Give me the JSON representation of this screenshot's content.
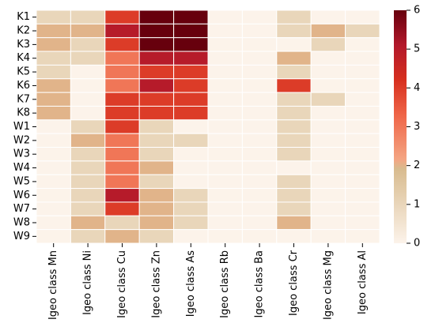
{
  "chart_data": {
    "type": "heatmap",
    "title": "",
    "xlabel": "",
    "ylabel": "",
    "rows": [
      "K1",
      "K2",
      "K3",
      "K4",
      "K5",
      "K6",
      "K7",
      "K8",
      "W1",
      "W2",
      "W3",
      "W4",
      "W5",
      "W6",
      "W7",
      "W8",
      "W9"
    ],
    "columns": [
      "Igeo class Mn",
      "Igeo class Ni",
      "Igeo class Cu",
      "Igeo class Zn",
      "Igeo class As",
      "Igeo class Rb",
      "Igeo class Ba",
      "Igeo class Cr",
      "Igeo class Mg",
      "Igeo class Al"
    ],
    "values": [
      [
        1,
        1,
        4,
        6,
        6,
        0,
        0,
        1,
        0,
        0
      ],
      [
        2,
        2,
        5,
        6,
        6,
        0,
        0,
        1,
        2,
        1
      ],
      [
        2,
        1,
        4,
        6,
        6,
        0,
        0,
        0,
        1,
        0
      ],
      [
        1,
        1,
        3,
        5,
        5,
        0,
        0,
        2,
        0,
        0
      ],
      [
        1,
        0,
        3,
        4,
        4,
        0,
        0,
        1,
        0,
        0
      ],
      [
        2,
        0,
        3,
        5,
        4,
        0,
        0,
        4,
        0,
        0
      ],
      [
        2,
        0,
        4,
        4,
        4,
        0,
        0,
        1,
        1,
        0
      ],
      [
        2,
        0,
        4,
        4,
        4,
        0,
        0,
        1,
        0,
        0
      ],
      [
        0,
        1,
        4,
        1,
        0,
        0,
        0,
        1,
        0,
        0
      ],
      [
        0,
        2,
        3,
        1,
        1,
        0,
        0,
        1,
        0,
        0
      ],
      [
        0,
        1,
        3,
        1,
        0,
        0,
        0,
        1,
        0,
        0
      ],
      [
        0,
        1,
        3,
        2,
        0,
        0,
        0,
        0,
        0,
        0
      ],
      [
        0,
        1,
        3,
        1,
        0,
        0,
        0,
        1,
        0,
        0
      ],
      [
        0,
        1,
        5,
        2,
        1,
        0,
        0,
        1,
        0,
        0
      ],
      [
        0,
        1,
        4,
        2,
        1,
        0,
        0,
        1,
        0,
        0
      ],
      [
        0,
        2,
        1,
        2,
        1,
        0,
        0,
        2,
        0,
        0
      ],
      [
        0,
        1,
        2,
        1,
        0,
        0,
        0,
        0,
        0,
        0
      ]
    ],
    "colorbar": {
      "min": 0,
      "max": 6,
      "ticks": [
        0,
        1,
        2,
        3,
        4,
        5,
        6
      ]
    },
    "colormap": {
      "low": "#fcf3ea",
      "mid": "#d8bb8e",
      "orange": "#f4a582",
      "high": "#67000d"
    },
    "grid": "white lines between cells"
  }
}
